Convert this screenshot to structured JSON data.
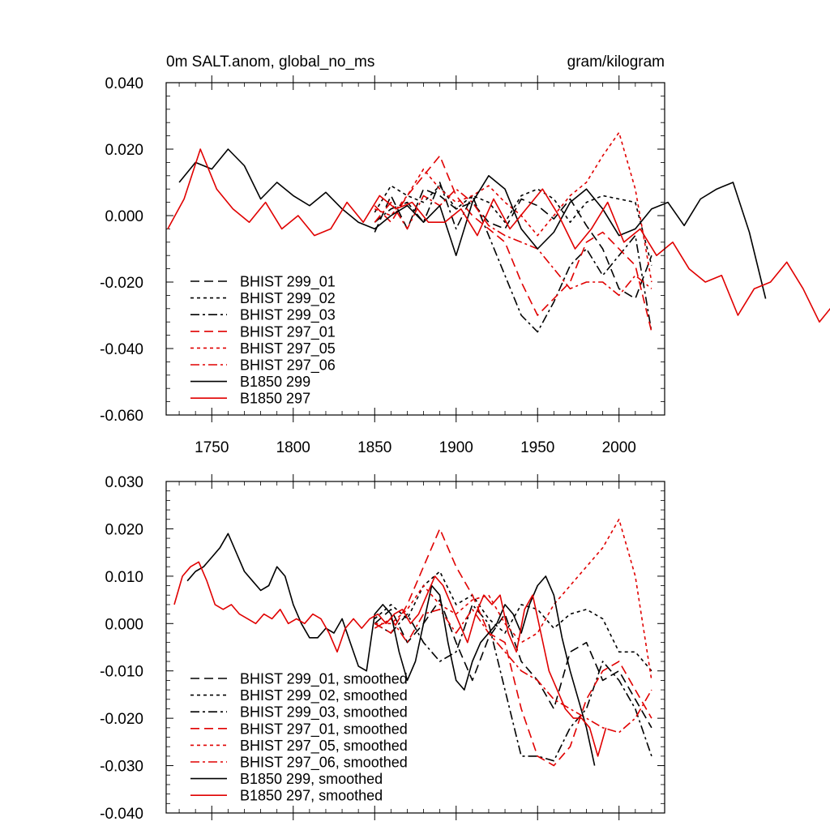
{
  "chart_data": [
    {
      "type": "line",
      "title_left": "0m SALT.anom, global_no_ms",
      "title_right": "gram/kilogram",
      "xlim": [
        1722,
        2028
      ],
      "ylim": [
        -0.06,
        0.04
      ],
      "x_ticks": [
        1750,
        1800,
        1850,
        1900,
        1950,
        2000
      ],
      "x_tick_labels": [
        "1750",
        "1800",
        "1850",
        "1900",
        "1950",
        "2000"
      ],
      "y_ticks": [
        -0.06,
        -0.04,
        -0.02,
        0.0,
        0.02,
        0.04
      ],
      "y_tick_labels": [
        "-0.060",
        "-0.040",
        "-0.020",
        "0.000",
        "0.020",
        "0.040"
      ],
      "legend_position": "bottom-left",
      "series": [
        {
          "name": "BHIST 299_01",
          "color": "#000000",
          "dash": "dash",
          "x_start": 1850,
          "x_step": 10,
          "values": [
            -0.005,
            0.006,
            -0.004,
            0.008,
            0.006,
            0.002,
            0.004,
            -0.002,
            -0.004,
            0.005,
            0.003,
            -0.001,
            0.005,
            -0.003,
            -0.01,
            -0.022,
            -0.025,
            -0.012
          ]
        },
        {
          "name": "BHIST 299_02",
          "color": "#000000",
          "dash": "dot",
          "x_start": 1850,
          "x_step": 10,
          "values": [
            0.001,
            0.009,
            0.006,
            0.004,
            0.009,
            0.002,
            0.006,
            0.004,
            -0.002,
            0.006,
            0.008,
            0.005,
            -0.002,
            0.004,
            0.006,
            0.005,
            0.004,
            -0.015
          ]
        },
        {
          "name": "BHIST 299_03",
          "color": "#000000",
          "dash": "dashdot",
          "x_start": 1850,
          "x_step": 10,
          "values": [
            -0.002,
            0.002,
            0.004,
            -0.002,
            0.01,
            -0.004,
            0.006,
            -0.006,
            -0.018,
            -0.03,
            -0.035,
            -0.026,
            -0.015,
            -0.01,
            -0.018,
            -0.012,
            -0.006,
            -0.035
          ]
        },
        {
          "name": "BHIST 297_01",
          "color": "#e00000",
          "dash": "dash",
          "x_start": 1850,
          "x_step": 10,
          "values": [
            0.003,
            -0.002,
            0.006,
            0.012,
            0.018,
            0.006,
            0.0,
            -0.004,
            -0.008,
            -0.02,
            -0.03,
            -0.025,
            -0.02,
            -0.008,
            -0.005,
            -0.01,
            -0.015,
            -0.035
          ]
        },
        {
          "name": "BHIST 297_05",
          "color": "#e00000",
          "dash": "dot",
          "x_start": 1850,
          "x_step": 10,
          "values": [
            0.002,
            0.0,
            0.006,
            0.014,
            0.008,
            0.004,
            0.006,
            0.009,
            0.004,
            0.0,
            -0.006,
            0.0,
            0.006,
            0.01,
            0.018,
            0.025,
            0.008,
            -0.02
          ]
        },
        {
          "name": "BHIST 297_06",
          "color": "#e00000",
          "dash": "dashdot",
          "x_start": 1850,
          "x_step": 10,
          "values": [
            -0.002,
            0.004,
            -0.004,
            0.006,
            0.003,
            0.008,
            0.004,
            -0.003,
            -0.006,
            -0.008,
            -0.01,
            -0.016,
            -0.022,
            -0.02,
            -0.02,
            -0.024,
            -0.018,
            -0.022
          ]
        },
        {
          "name": "B1850 299",
          "color": "#000000",
          "dash": "solid",
          "x_start": 1730,
          "x_step": 10,
          "values": [
            0.01,
            0.016,
            0.014,
            0.02,
            0.015,
            0.005,
            0.01,
            0.006,
            0.003,
            0.007,
            0.002,
            -0.002,
            -0.004,
            0.0,
            0.003,
            -0.002,
            0.003,
            -0.012,
            0.004,
            0.012,
            0.008,
            -0.004,
            -0.01,
            -0.005,
            0.004,
            0.008,
            0.002,
            -0.006,
            -0.004,
            0.002,
            0.004,
            -0.003,
            0.005,
            0.008,
            0.01,
            -0.005,
            -0.025
          ]
        },
        {
          "name": "B1850 297",
          "color": "#e00000",
          "dash": "solid",
          "x_start": 1723,
          "x_step": 10,
          "values": [
            -0.004,
            0.005,
            0.02,
            0.008,
            0.002,
            -0.002,
            0.004,
            -0.004,
            0.0,
            -0.006,
            -0.004,
            0.004,
            -0.002,
            0.006,
            0.002,
            0.004,
            -0.002,
            -0.002,
            0.002,
            -0.006,
            0.005,
            -0.004,
            0.002,
            0.008,
            0.0,
            -0.01,
            -0.004,
            0.004,
            -0.008,
            -0.004,
            -0.012,
            -0.008,
            -0.016,
            -0.02,
            -0.018,
            -0.03,
            -0.022,
            -0.02,
            -0.014,
            -0.022,
            -0.032,
            -0.026
          ]
        }
      ]
    },
    {
      "type": "line",
      "xlim": [
        1722,
        2028
      ],
      "ylim": [
        -0.04,
        0.03
      ],
      "x_ticks": [
        1750,
        1800,
        1850,
        1900,
        1950,
        2000
      ],
      "y_ticks": [
        -0.04,
        -0.03,
        -0.02,
        -0.01,
        0.0,
        0.01,
        0.02,
        0.03
      ],
      "y_tick_labels": [
        "-0.040",
        "-0.030",
        "-0.020",
        "-0.010",
        "0.000",
        "0.010",
        "0.020",
        "0.030"
      ],
      "legend_position": "bottom-left",
      "series": [
        {
          "name": "BHIST 299_01, smoothed",
          "color": "#000000",
          "dash": "dash",
          "x_start": 1850,
          "x_step": 10,
          "values": [
            0.0,
            0.003,
            -0.004,
            0.0,
            0.005,
            -0.004,
            -0.012,
            -0.003,
            0.002,
            -0.008,
            -0.012,
            -0.018,
            -0.006,
            -0.004,
            -0.012,
            -0.01,
            -0.016,
            -0.022
          ]
        },
        {
          "name": "BHIST 299_02, smoothed",
          "color": "#000000",
          "dash": "dot",
          "x_start": 1850,
          "x_step": 10,
          "values": [
            0.001,
            0.004,
            0.001,
            0.008,
            0.011,
            0.004,
            0.006,
            0.001,
            -0.002,
            0.004,
            0.003,
            -0.001,
            0.002,
            0.003,
            0.001,
            -0.006,
            -0.006,
            -0.01
          ]
        },
        {
          "name": "BHIST 299_03, smoothed",
          "color": "#000000",
          "dash": "dashdot",
          "x_start": 1850,
          "x_step": 10,
          "values": [
            0.0,
            -0.002,
            0.002,
            -0.004,
            -0.008,
            -0.006,
            0.004,
            0.0,
            -0.014,
            -0.028,
            -0.028,
            -0.029,
            -0.022,
            -0.018,
            -0.008,
            -0.012,
            -0.018,
            -0.028
          ]
        },
        {
          "name": "BHIST 297_01, smoothed",
          "color": "#e00000",
          "dash": "dash",
          "x_start": 1850,
          "x_step": 10,
          "values": [
            0.0,
            -0.002,
            0.004,
            0.012,
            0.02,
            0.012,
            0.006,
            -0.002,
            -0.004,
            -0.018,
            -0.028,
            -0.03,
            -0.026,
            -0.016,
            -0.01,
            -0.008,
            -0.014,
            -0.02
          ]
        },
        {
          "name": "BHIST 297_05, smoothed",
          "color": "#e00000",
          "dash": "dot",
          "x_start": 1850,
          "x_step": 10,
          "values": [
            0.0,
            0.0,
            0.003,
            0.008,
            0.004,
            0.002,
            0.005,
            0.006,
            0.0,
            -0.004,
            -0.002,
            0.004,
            0.008,
            0.012,
            0.016,
            0.022,
            0.01,
            -0.012
          ]
        },
        {
          "name": "BHIST 297_06, smoothed",
          "color": "#e00000",
          "dash": "dashdot",
          "x_start": 1850,
          "x_step": 10,
          "values": [
            -0.001,
            0.001,
            -0.004,
            0.002,
            0.003,
            -0.002,
            0.003,
            -0.002,
            -0.006,
            -0.01,
            -0.012,
            -0.016,
            -0.018,
            -0.02,
            -0.022,
            -0.023,
            -0.02,
            -0.014
          ]
        },
        {
          "name": "B1850 299, smoothed",
          "color": "#000000",
          "dash": "solid",
          "x_start": 1735,
          "x_step": 5,
          "values": [
            0.009,
            0.011,
            0.012,
            0.014,
            0.016,
            0.019,
            0.015,
            0.011,
            0.009,
            0.007,
            0.008,
            0.012,
            0.01,
            0.004,
            0.0,
            -0.003,
            -0.003,
            -0.001,
            -0.002,
            0.001,
            -0.004,
            -0.009,
            -0.01,
            0.002,
            0.004,
            0.002,
            -0.006,
            -0.012,
            -0.008,
            0.0,
            0.008,
            0.006,
            -0.004,
            -0.012,
            -0.014,
            -0.008,
            -0.004,
            -0.002,
            0.0,
            0.004,
            0.002,
            -0.002,
            0.004,
            0.008,
            0.01,
            0.006,
            -0.003,
            -0.01,
            -0.016,
            -0.022,
            -0.03
          ]
        },
        {
          "name": "B1850 297, smoothed",
          "color": "#e00000",
          "dash": "solid",
          "x_start": 1727,
          "x_step": 5,
          "values": [
            0.004,
            0.01,
            0.012,
            0.013,
            0.009,
            0.004,
            0.003,
            0.004,
            0.002,
            0.001,
            0.0,
            0.002,
            0.001,
            0.003,
            0.0,
            0.001,
            0.0,
            0.002,
            0.001,
            -0.002,
            -0.006,
            -0.001,
            0.001,
            -0.001,
            0.001,
            0.002,
            0.0,
            0.002,
            0.003,
            0.0,
            0.002,
            0.006,
            0.01,
            0.008,
            0.004,
            0.0,
            -0.004,
            0.002,
            0.006,
            0.004,
            0.006,
            -0.002,
            -0.006,
            0.003,
            0.006,
            -0.002,
            -0.01,
            -0.014,
            -0.018,
            -0.02,
            -0.02,
            -0.022,
            -0.028,
            -0.022
          ]
        }
      ]
    }
  ]
}
